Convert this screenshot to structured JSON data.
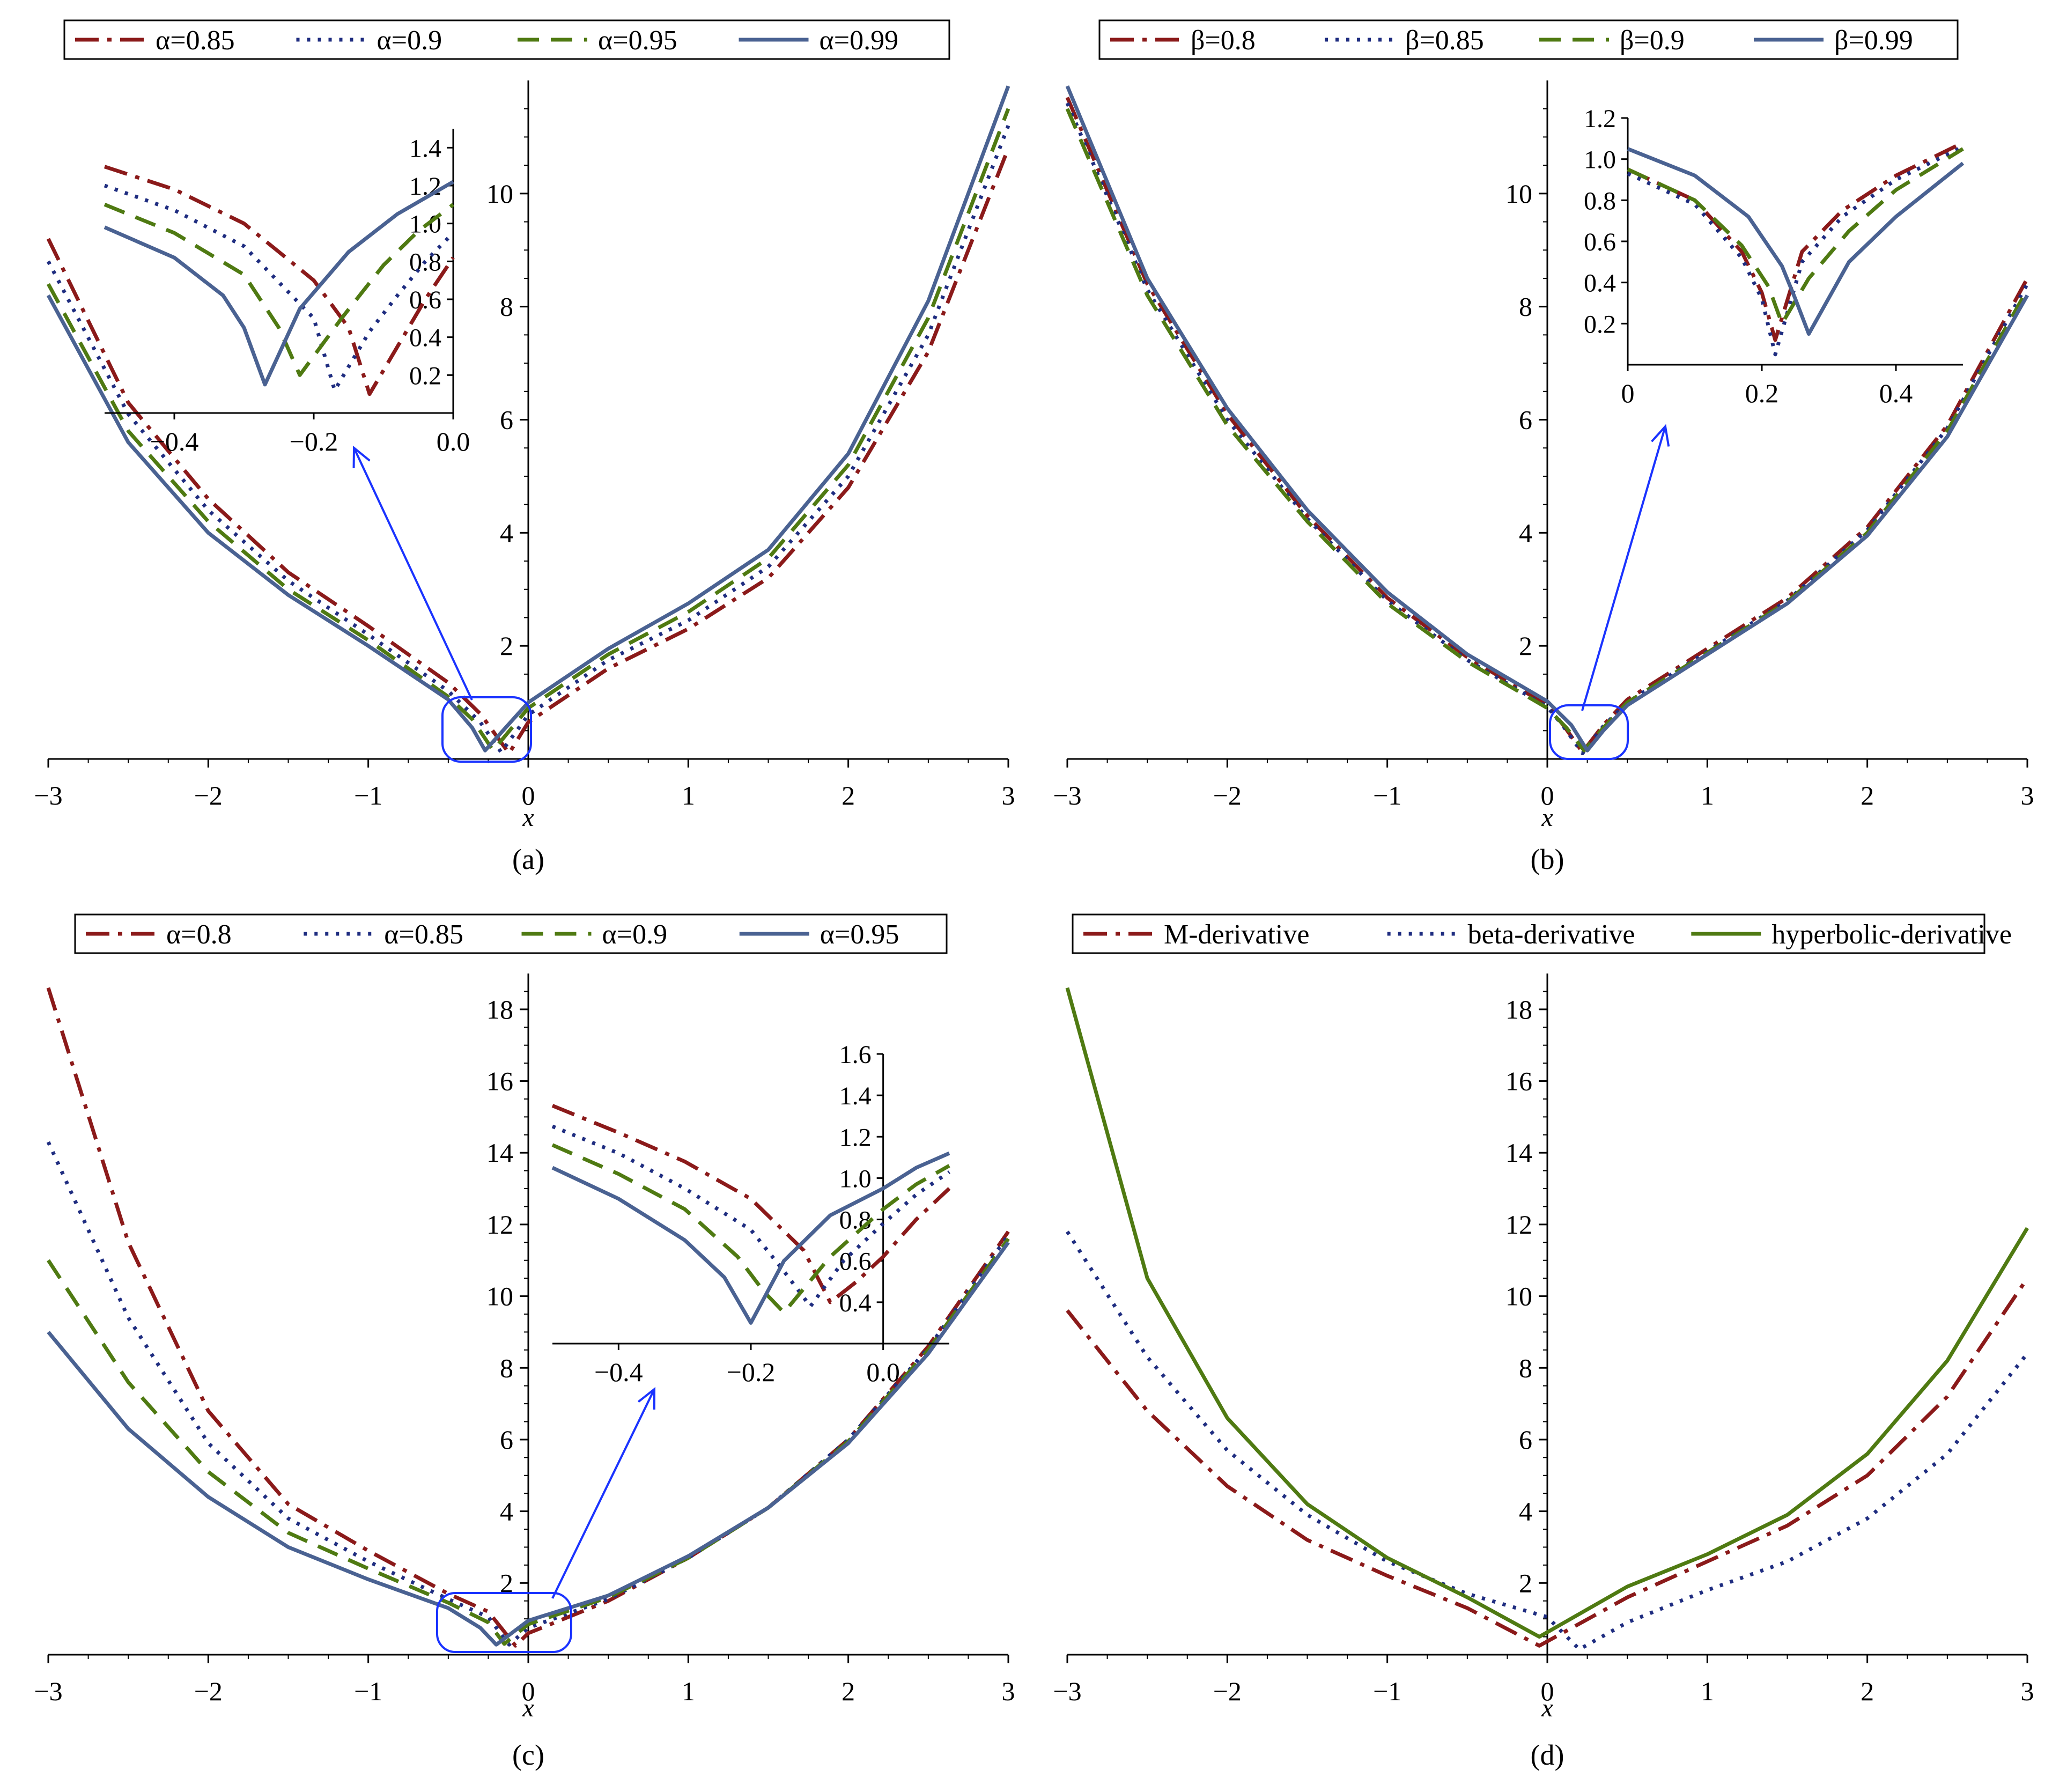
{
  "colors": {
    "dark_red": "#8b1a1a",
    "dark_blue": "#1f2d80",
    "olive_green": "#4f7a12",
    "steel_blue": "#4a6292",
    "highlight_blue": "#1a33ff"
  },
  "chart_data": [
    {
      "id": "a",
      "type": "line",
      "caption": "(a)",
      "xlabel": "x",
      "xlim": [
        -3,
        3
      ],
      "ylim": [
        0,
        12
      ],
      "xticks": [
        "−3",
        "−2",
        "−1",
        "0",
        "1",
        "2",
        "3"
      ],
      "yticks": [
        "2",
        "4",
        "6",
        "8",
        "10"
      ],
      "legend": [
        "α=0.85",
        "α=0.9",
        "α=0.95",
        "α=0.99"
      ],
      "series": [
        {
          "name": "α=0.85",
          "style": "dashdot",
          "color": "#8b1a1a",
          "x": [
            -3.0,
            -2.5,
            -2.0,
            -1.5,
            -1.0,
            -0.5,
            -0.3,
            -0.12,
            0.0,
            0.5,
            1.0,
            1.5,
            2.0,
            2.5,
            3.0
          ],
          "y": [
            9.2,
            6.3,
            4.6,
            3.3,
            2.35,
            1.35,
            0.8,
            0.1,
            0.65,
            1.6,
            2.3,
            3.2,
            4.8,
            7.2,
            10.8
          ]
        },
        {
          "name": "α=0.9",
          "style": "dot",
          "color": "#1f2d80",
          "x": [
            -3.0,
            -2.5,
            -2.0,
            -1.5,
            -1.0,
            -0.5,
            -0.3,
            -0.17,
            0.0,
            0.5,
            1.0,
            1.5,
            2.0,
            2.5,
            3.0
          ],
          "y": [
            8.8,
            6.1,
            4.4,
            3.15,
            2.2,
            1.2,
            0.65,
            0.12,
            0.78,
            1.75,
            2.45,
            3.4,
            5.0,
            7.5,
            11.2
          ]
        },
        {
          "name": "α=0.95",
          "style": "dash",
          "color": "#4f7a12",
          "x": [
            -3.0,
            -2.5,
            -2.0,
            -1.5,
            -1.0,
            -0.5,
            -0.35,
            -0.22,
            0.0,
            0.5,
            1.0,
            1.5,
            2.0,
            2.5,
            3.0
          ],
          "y": [
            8.4,
            5.8,
            4.2,
            3.0,
            2.1,
            1.1,
            0.7,
            0.15,
            0.9,
            1.85,
            2.6,
            3.55,
            5.2,
            7.8,
            11.5
          ]
        },
        {
          "name": "α=0.99",
          "style": "solid",
          "color": "#4a6292",
          "x": [
            -3.0,
            -2.5,
            -2.0,
            -1.5,
            -1.0,
            -0.5,
            -0.35,
            -0.27,
            0.0,
            0.5,
            1.0,
            1.5,
            2.0,
            2.5,
            3.0
          ],
          "y": [
            8.2,
            5.6,
            4.0,
            2.9,
            2.0,
            1.05,
            0.55,
            0.15,
            1.0,
            1.95,
            2.75,
            3.7,
            5.4,
            8.1,
            11.9
          ]
        }
      ],
      "inset": {
        "xlim": [
          -0.5,
          0.0
        ],
        "ylim": [
          0.0,
          1.5
        ],
        "xticks": [
          "−0.4",
          "−0.2",
          "0.0"
        ],
        "yticks": [
          "0.2",
          "0.4",
          "0.6",
          "0.8",
          "1.0",
          "1.2",
          "1.4"
        ],
        "series": [
          {
            "x": [
              -0.5,
              -0.4,
              -0.3,
              -0.2,
              -0.15,
              -0.12,
              -0.08,
              -0.04,
              0.0
            ],
            "y": [
              1.3,
              1.18,
              1.0,
              0.7,
              0.45,
              0.1,
              0.35,
              0.6,
              0.82
            ]
          },
          {
            "x": [
              -0.5,
              -0.4,
              -0.3,
              -0.2,
              -0.17,
              -0.12,
              -0.08,
              -0.04,
              0.0
            ],
            "y": [
              1.2,
              1.07,
              0.88,
              0.5,
              0.12,
              0.43,
              0.62,
              0.8,
              0.95
            ]
          },
          {
            "x": [
              -0.5,
              -0.4,
              -0.3,
              -0.25,
              -0.22,
              -0.16,
              -0.1,
              -0.05,
              0.0
            ],
            "y": [
              1.1,
              0.95,
              0.73,
              0.45,
              0.2,
              0.5,
              0.78,
              0.96,
              1.1
            ]
          },
          {
            "x": [
              -0.5,
              -0.4,
              -0.33,
              -0.3,
              -0.27,
              -0.22,
              -0.15,
              -0.08,
              0.0
            ],
            "y": [
              0.98,
              0.82,
              0.62,
              0.45,
              0.15,
              0.55,
              0.85,
              1.05,
              1.22
            ]
          }
        ]
      }
    },
    {
      "id": "b",
      "type": "line",
      "caption": "(b)",
      "xlabel": "x",
      "xlim": [
        -3,
        3
      ],
      "ylim": [
        0,
        12
      ],
      "xticks": [
        "−3",
        "−2",
        "−1",
        "0",
        "1",
        "2",
        "3"
      ],
      "yticks": [
        "2",
        "4",
        "6",
        "8",
        "10"
      ],
      "legend": [
        "β=0.8",
        "β=0.85",
        "β=0.9",
        "β=0.99"
      ],
      "series": [
        {
          "name": "β=0.8",
          "style": "dashdot",
          "color": "#8b1a1a",
          "x": [
            -3.0,
            -2.5,
            -2.0,
            -1.5,
            -1.0,
            -0.5,
            0.0,
            0.1,
            0.22,
            0.35,
            0.5,
            1.0,
            1.5,
            2.0,
            2.5,
            3.0
          ],
          "y": [
            11.7,
            8.4,
            6.1,
            4.3,
            2.85,
            1.8,
            0.95,
            0.6,
            0.12,
            0.6,
            1.05,
            1.95,
            2.85,
            4.1,
            5.9,
            8.5
          ]
        },
        {
          "name": "β=0.85",
          "style": "dot",
          "color": "#1f2d80",
          "x": [
            -3.0,
            -2.5,
            -2.0,
            -1.5,
            -1.0,
            -0.5,
            0.0,
            0.1,
            0.22,
            0.35,
            0.5,
            1.0,
            1.5,
            2.0,
            2.5,
            3.0
          ],
          "y": [
            11.6,
            8.3,
            6.0,
            4.25,
            2.8,
            1.75,
            0.92,
            0.58,
            0.1,
            0.58,
            1.0,
            1.9,
            2.8,
            4.05,
            5.85,
            8.4
          ]
        },
        {
          "name": "β=0.9",
          "style": "dash",
          "color": "#4f7a12",
          "x": [
            -3.0,
            -2.5,
            -2.0,
            -1.5,
            -1.0,
            -0.5,
            0.0,
            0.12,
            0.23,
            0.35,
            0.5,
            1.0,
            1.5,
            2.0,
            2.5,
            3.0
          ],
          "y": [
            11.5,
            8.2,
            5.9,
            4.2,
            2.75,
            1.72,
            0.9,
            0.55,
            0.15,
            0.55,
            1.0,
            1.88,
            2.78,
            4.0,
            5.8,
            8.3
          ]
        },
        {
          "name": "β=0.99",
          "style": "solid",
          "color": "#4a6292",
          "x": [
            -3.0,
            -2.5,
            -2.0,
            -1.5,
            -1.0,
            -0.5,
            0.0,
            0.15,
            0.25,
            0.35,
            0.5,
            1.0,
            1.5,
            2.0,
            2.5,
            3.0
          ],
          "y": [
            11.9,
            8.5,
            6.2,
            4.4,
            2.95,
            1.85,
            1.02,
            0.6,
            0.15,
            0.5,
            0.95,
            1.85,
            2.75,
            3.95,
            5.7,
            8.2
          ]
        }
      ],
      "inset": {
        "xlim": [
          0.0,
          0.5
        ],
        "ylim": [
          0.0,
          1.2
        ],
        "xticks": [
          "0",
          "0.2",
          "0.4"
        ],
        "yticks": [
          "0.2",
          "0.4",
          "0.6",
          "0.8",
          "1.0",
          "1.2"
        ],
        "series": [
          {
            "x": [
              0.0,
              0.1,
              0.17,
              0.2,
              0.22,
              0.26,
              0.32,
              0.4,
              0.5
            ],
            "y": [
              0.95,
              0.8,
              0.55,
              0.35,
              0.12,
              0.55,
              0.75,
              0.92,
              1.08
            ]
          },
          {
            "x": [
              0.0,
              0.1,
              0.17,
              0.2,
              0.22,
              0.26,
              0.32,
              0.4,
              0.5
            ],
            "y": [
              0.93,
              0.78,
              0.52,
              0.32,
              0.05,
              0.5,
              0.72,
              0.9,
              1.06
            ]
          },
          {
            "x": [
              0.0,
              0.1,
              0.17,
              0.21,
              0.23,
              0.27,
              0.33,
              0.4,
              0.5
            ],
            "y": [
              0.95,
              0.8,
              0.58,
              0.38,
              0.2,
              0.42,
              0.65,
              0.85,
              1.05
            ]
          },
          {
            "x": [
              0.0,
              0.1,
              0.18,
              0.23,
              0.25,
              0.27,
              0.33,
              0.4,
              0.5
            ],
            "y": [
              1.05,
              0.92,
              0.72,
              0.48,
              0.32,
              0.15,
              0.5,
              0.72,
              0.98
            ]
          }
        ]
      }
    },
    {
      "id": "c",
      "type": "line",
      "caption": "(c)",
      "xlabel": "x",
      "xlim": [
        -3,
        3
      ],
      "ylim": [
        0,
        19
      ],
      "xticks": [
        "−3",
        "−2",
        "−1",
        "0",
        "1",
        "2",
        "3"
      ],
      "yticks": [
        "2",
        "4",
        "6",
        "8",
        "10",
        "12",
        "14",
        "16",
        "18"
      ],
      "legend": [
        "α=0.8",
        "α=0.85",
        "α=0.9",
        "α=0.95"
      ],
      "series": [
        {
          "name": "α=0.8",
          "style": "dashdot",
          "color": "#8b1a1a",
          "x": [
            -3.0,
            -2.5,
            -2.0,
            -1.5,
            -1.0,
            -0.5,
            -0.25,
            -0.08,
            0.0,
            0.5,
            1.0,
            1.5,
            2.0,
            2.5,
            3.0
          ],
          "y": [
            18.6,
            11.5,
            6.8,
            4.2,
            2.9,
            1.7,
            1.2,
            0.25,
            0.6,
            1.5,
            2.7,
            4.1,
            6.0,
            8.6,
            11.8
          ]
        },
        {
          "name": "α=0.85",
          "style": "dot",
          "color": "#1f2d80",
          "x": [
            -3.0,
            -2.5,
            -2.0,
            -1.5,
            -1.0,
            -0.5,
            -0.25,
            -0.12,
            0.0,
            0.5,
            1.0,
            1.5,
            2.0,
            2.5,
            3.0
          ],
          "y": [
            14.3,
            9.4,
            5.9,
            3.8,
            2.6,
            1.55,
            1.05,
            0.28,
            0.75,
            1.55,
            2.7,
            4.1,
            6.0,
            8.55,
            11.7
          ]
        },
        {
          "name": "α=0.9",
          "style": "dash",
          "color": "#4f7a12",
          "x": [
            -3.0,
            -2.5,
            -2.0,
            -1.5,
            -1.0,
            -0.5,
            -0.25,
            -0.15,
            0.0,
            0.5,
            1.0,
            1.5,
            2.0,
            2.5,
            3.0
          ],
          "y": [
            11.0,
            7.6,
            5.1,
            3.4,
            2.4,
            1.45,
            0.9,
            0.3,
            0.85,
            1.6,
            2.7,
            4.1,
            5.95,
            8.5,
            11.6
          ]
        },
        {
          "name": "α=0.95",
          "style": "solid",
          "color": "#4a6292",
          "x": [
            -3.0,
            -2.5,
            -2.0,
            -1.5,
            -1.0,
            -0.5,
            -0.3,
            -0.2,
            0.0,
            0.5,
            1.0,
            1.5,
            2.0,
            2.5,
            3.0
          ],
          "y": [
            9.0,
            6.3,
            4.4,
            3.0,
            2.1,
            1.3,
            0.75,
            0.28,
            0.95,
            1.65,
            2.75,
            4.1,
            5.9,
            8.4,
            11.5
          ]
        }
      ],
      "inset": {
        "xlim": [
          -0.5,
          0.1
        ],
        "ylim": [
          0.2,
          1.6
        ],
        "xticks": [
          "−0.4",
          "−0.2",
          "0.0"
        ],
        "yticks": [
          "0.4",
          "0.6",
          "0.8",
          "1.0",
          "1.2",
          "1.4",
          "1.6"
        ],
        "series": [
          {
            "x": [
              -0.5,
              -0.4,
              -0.3,
              -0.2,
              -0.12,
              -0.08,
              -0.04,
              0.0,
              0.05,
              0.1
            ],
            "y": [
              1.35,
              1.22,
              1.08,
              0.9,
              0.65,
              0.4,
              0.5,
              0.62,
              0.8,
              0.95
            ]
          },
          {
            "x": [
              -0.5,
              -0.4,
              -0.3,
              -0.2,
              -0.15,
              -0.11,
              -0.06,
              0.0,
              0.05,
              0.1
            ],
            "y": [
              1.25,
              1.12,
              0.95,
              0.75,
              0.55,
              0.38,
              0.6,
              0.78,
              0.92,
              1.03
            ]
          },
          {
            "x": [
              -0.5,
              -0.4,
              -0.3,
              -0.22,
              -0.18,
              -0.15,
              -0.08,
              0.0,
              0.05,
              0.1
            ],
            "y": [
              1.16,
              1.02,
              0.85,
              0.62,
              0.45,
              0.35,
              0.62,
              0.85,
              0.97,
              1.06
            ]
          },
          {
            "x": [
              -0.5,
              -0.4,
              -0.3,
              -0.24,
              -0.2,
              -0.15,
              -0.08,
              0.0,
              0.05,
              0.1
            ],
            "y": [
              1.05,
              0.9,
              0.7,
              0.52,
              0.3,
              0.6,
              0.82,
              0.95,
              1.05,
              1.12
            ]
          }
        ]
      }
    },
    {
      "id": "d",
      "type": "line",
      "caption": "(d)",
      "xlabel": "x",
      "xlim": [
        -3,
        3
      ],
      "ylim": [
        0,
        19
      ],
      "xticks": [
        "−3",
        "−2",
        "−1",
        "0",
        "1",
        "2",
        "3"
      ],
      "yticks": [
        "2",
        "4",
        "6",
        "8",
        "10",
        "12",
        "14",
        "16",
        "18"
      ],
      "legend": [
        "M-derivative",
        "beta-derivative",
        "hyperbolic-derivative"
      ],
      "series": [
        {
          "name": "M-derivative",
          "style": "dashdot",
          "color": "#8b1a1a",
          "x": [
            -3.0,
            -2.5,
            -2.0,
            -1.5,
            -1.0,
            -0.5,
            -0.05,
            0.5,
            1.0,
            1.5,
            2.0,
            2.5,
            3.0
          ],
          "y": [
            9.6,
            6.8,
            4.7,
            3.2,
            2.2,
            1.3,
            0.25,
            1.6,
            2.6,
            3.6,
            5.0,
            7.2,
            10.5
          ]
        },
        {
          "name": "beta-derivative",
          "style": "dot",
          "color": "#1f2d80",
          "x": [
            -3.0,
            -2.5,
            -2.0,
            -1.5,
            -1.0,
            -0.5,
            0.0,
            0.1,
            0.2,
            0.5,
            1.0,
            1.5,
            2.0,
            2.5,
            3.0
          ],
          "y": [
            11.8,
            8.3,
            5.7,
            3.9,
            2.6,
            1.7,
            1.05,
            0.6,
            0.15,
            0.9,
            1.8,
            2.6,
            3.8,
            5.6,
            8.4
          ]
        },
        {
          "name": "hyperbolic-derivative",
          "style": "solid",
          "color": "#4f7a12",
          "x": [
            -3.0,
            -2.5,
            -2.0,
            -1.5,
            -1.0,
            -0.5,
            -0.05,
            0.5,
            1.0,
            1.5,
            2.0,
            2.5,
            3.0
          ],
          "y": [
            18.6,
            10.5,
            6.6,
            4.2,
            2.7,
            1.6,
            0.5,
            1.9,
            2.8,
            3.9,
            5.6,
            8.2,
            11.9
          ]
        }
      ]
    }
  ]
}
